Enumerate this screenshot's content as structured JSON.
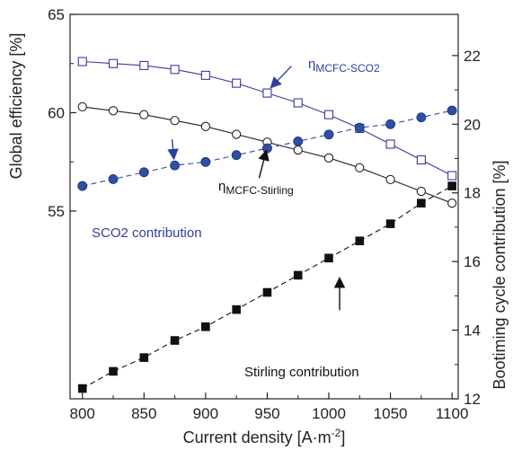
{
  "chart_data": {
    "type": "line",
    "x": [
      800,
      825,
      850,
      875,
      900,
      925,
      950,
      975,
      1000,
      1025,
      1050,
      1075,
      1100
    ],
    "xlabel": "Current density [A·m⁻²]",
    "ylabel_left": "Global efficiency [%]",
    "ylabel_right": "Bootiming cycle contribution [%]",
    "xlim": [
      790,
      1105
    ],
    "ylim_left": [
      45.45,
      65
    ],
    "ylim_right": [
      12,
      23.2
    ],
    "xticks": [
      "800",
      "850",
      "900",
      "950",
      "1000",
      "1050",
      "1100"
    ],
    "yticks_left": [
      "55",
      "60",
      "65"
    ],
    "yticks_right": [
      "12",
      "14",
      "16",
      "18",
      "20",
      "22"
    ],
    "grid": false,
    "legend": "none",
    "series": [
      {
        "axis": "left",
        "marker": "open-square",
        "line": "solid",
        "color": "#3a3a9a",
        "values": [
          62.6,
          62.5,
          62.4,
          62.2,
          61.9,
          61.5,
          61.0,
          60.5,
          59.9,
          59.2,
          58.4,
          57.6,
          56.8
        ]
      },
      {
        "axis": "left",
        "marker": "open-circle",
        "line": "solid",
        "color": "#222222",
        "values": [
          60.3,
          60.1,
          59.9,
          59.6,
          59.3,
          58.9,
          58.5,
          58.1,
          57.7,
          57.2,
          56.6,
          56.0,
          55.4
        ]
      },
      {
        "axis": "right",
        "marker": "filled-circle",
        "line": "dashed",
        "color": "#2e4fa3",
        "values": [
          18.2,
          18.4,
          18.6,
          18.8,
          18.9,
          19.1,
          19.3,
          19.5,
          19.7,
          19.9,
          20.0,
          20.2,
          20.4
        ]
      },
      {
        "axis": "right",
        "marker": "filled-square",
        "line": "dashed",
        "color": "#111111",
        "values": [
          12.3,
          12.8,
          13.2,
          13.7,
          14.1,
          14.6,
          15.1,
          15.6,
          16.1,
          16.6,
          17.1,
          17.7,
          18.2
        ]
      }
    ],
    "annotations": [
      {
        "text_sub": "MCFC-SCO2",
        "target_series": 0,
        "target_index": 6,
        "color": "#2e3f9a"
      },
      {
        "text_sub": "MCFC-Stirling",
        "target_series": 1,
        "target_index": 6,
        "color": "#111111"
      },
      {
        "text": "SCO2 contribution",
        "target_series": 2,
        "target_index": 3,
        "color": "#2e3f9a"
      },
      {
        "text": "Stirling contribution",
        "target_series": 3,
        "target_index": 8,
        "color": "#111111"
      }
    ]
  }
}
